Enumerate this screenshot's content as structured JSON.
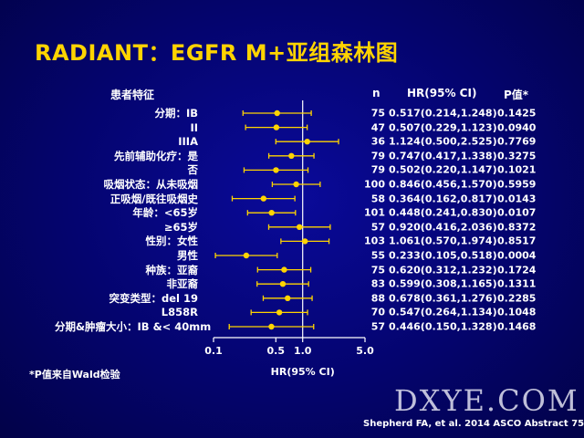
{
  "title": "RADIANT：EGFR M+亚组森林图",
  "headers": {
    "characteristic": "患者特征",
    "n": "n",
    "hr": "HR(95% CI)",
    "p": "P值*"
  },
  "footnote": "*P值来自Wald检验",
  "watermark": "DXYE.COM",
  "source": "Shepherd FA, et al. 2014 ASCO Abstract 7513",
  "colors": {
    "marker": "#ffd400",
    "line": "#ffd400",
    "title": "#ffd400"
  },
  "chart_data": {
    "type": "forest",
    "xlabel": "HR(95% CI)",
    "x_scale": "log",
    "xlim": [
      0.1,
      5.0
    ],
    "x_ticks": [
      "0.1",
      "0.5",
      "1.0",
      "5.0"
    ],
    "x_tick_values": [
      0.1,
      0.5,
      1.0,
      5.0
    ],
    "rows": [
      {
        "label": "分期：IB",
        "n": "75",
        "hr": 0.517,
        "lo": 0.214,
        "hi": 1.248,
        "hr_text": "0.517(0.214,1.248)",
        "p": "0.1425"
      },
      {
        "label": "II",
        "n": "47",
        "hr": 0.507,
        "lo": 0.229,
        "hi": 1.123,
        "hr_text": "0.507(0.229,1.123)",
        "p": "0.0940"
      },
      {
        "label": "IIIA",
        "n": "36",
        "hr": 1.124,
        "lo": 0.5,
        "hi": 2.525,
        "hr_text": "1.124(0.500,2.525)",
        "p": "0.7769"
      },
      {
        "label": "先前辅助化疗：是",
        "n": "79",
        "hr": 0.747,
        "lo": 0.417,
        "hi": 1.338,
        "hr_text": "0.747(0.417,1.338)",
        "p": "0.3275"
      },
      {
        "label": "否",
        "n": "79",
        "hr": 0.502,
        "lo": 0.22,
        "hi": 1.147,
        "hr_text": "0.502(0.220,1.147)",
        "p": "0.1021"
      },
      {
        "label": "吸烟状态：从未吸烟",
        "n": "100",
        "hr": 0.846,
        "lo": 0.456,
        "hi": 1.57,
        "hr_text": "0.846(0.456,1.570)",
        "p": "0.5959"
      },
      {
        "label": "正吸烟/既往吸烟史",
        "n": "58",
        "hr": 0.364,
        "lo": 0.162,
        "hi": 0.817,
        "hr_text": "0.364(0.162,0.817)",
        "p": "0.0143"
      },
      {
        "label": "年龄：<65岁",
        "n": "101",
        "hr": 0.448,
        "lo": 0.241,
        "hi": 0.83,
        "hr_text": "0.448(0.241,0.830)",
        "p": "0.0107"
      },
      {
        "label": "≥65岁",
        "n": "57",
        "hr": 0.92,
        "lo": 0.416,
        "hi": 2.036,
        "hr_text": "0.920(0.416,2.036)",
        "p": "0.8372"
      },
      {
        "label": "性别：女性",
        "n": "103",
        "hr": 1.061,
        "lo": 0.57,
        "hi": 1.974,
        "hr_text": "1.061(0.570,1.974)",
        "p": "0.8517"
      },
      {
        "label": "男性",
        "n": "55",
        "hr": 0.233,
        "lo": 0.105,
        "hi": 0.518,
        "hr_text": "0.233(0.105,0.518)",
        "p": "0.0004"
      },
      {
        "label": "种族：亚裔",
        "n": "75",
        "hr": 0.62,
        "lo": 0.312,
        "hi": 1.232,
        "hr_text": "0.620(0.312,1.232)",
        "p": "0.1724"
      },
      {
        "label": "非亚裔",
        "n": "83",
        "hr": 0.599,
        "lo": 0.308,
        "hi": 1.165,
        "hr_text": "0.599(0.308,1.165)",
        "p": "0.1311"
      },
      {
        "label": "突变类型：del 19",
        "n": "88",
        "hr": 0.678,
        "lo": 0.361,
        "hi": 1.276,
        "hr_text": "0.678(0.361,1.276)",
        "p": "0.2285"
      },
      {
        "label": "L858R",
        "n": "70",
        "hr": 0.547,
        "lo": 0.264,
        "hi": 1.134,
        "hr_text": "0.547(0.264,1.134)",
        "p": "0.1048"
      },
      {
        "label": "分期&肿瘤大小：IB &< 40mm",
        "n": "57",
        "hr": 0.446,
        "lo": 0.15,
        "hi": 1.328,
        "hr_text": "0.446(0.150,1.328)",
        "p": "0.1468"
      }
    ]
  }
}
